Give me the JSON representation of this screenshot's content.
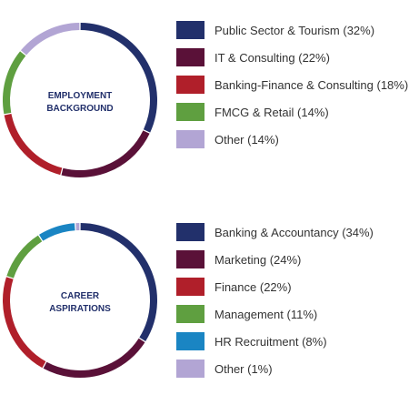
{
  "chart_data": [
    {
      "type": "pie",
      "title": "EMPLOYMENT BACKGROUND",
      "title_lines": [
        "EMPLOYMENT",
        "BACKGROUND"
      ],
      "categories": [
        "Public Sector & Tourism",
        "IT & Consulting",
        "Banking-Finance & Consulting",
        "FMCG & Retail",
        "Other"
      ],
      "values": [
        32,
        22,
        18,
        14,
        14
      ],
      "labels": [
        "Public Sector & Tourism (32%)",
        "IT & Consulting (22%)",
        "Banking-Finance & Consulting (18%)",
        "FMCG & Retail (14%)",
        "Other (14%)"
      ],
      "colors": [
        "#22306b",
        "#5a1138",
        "#b01f2a",
        "#5f9f40",
        "#b2a5d4"
      ],
      "style": "donut ring",
      "legend": "right"
    },
    {
      "type": "pie",
      "title": "CAREER ASPIRATIONS",
      "title_lines": [
        "CAREER",
        "ASPIRATIONS"
      ],
      "categories": [
        "Banking & Accountancy",
        "Marketing",
        "Finance",
        "Management",
        "HR Recruitment",
        "Other"
      ],
      "values": [
        34,
        24,
        22,
        11,
        8,
        1
      ],
      "labels": [
        "Banking & Accountancy (34%)",
        "Marketing (24%)",
        "Finance (22%)",
        "Management (11%)",
        "HR Recruitment (8%)",
        "Other (1%)"
      ],
      "colors": [
        "#22306b",
        "#5a1138",
        "#b01f2a",
        "#5f9f40",
        "#1a85c3",
        "#b2a5d4"
      ],
      "style": "donut ring",
      "legend": "right"
    }
  ]
}
